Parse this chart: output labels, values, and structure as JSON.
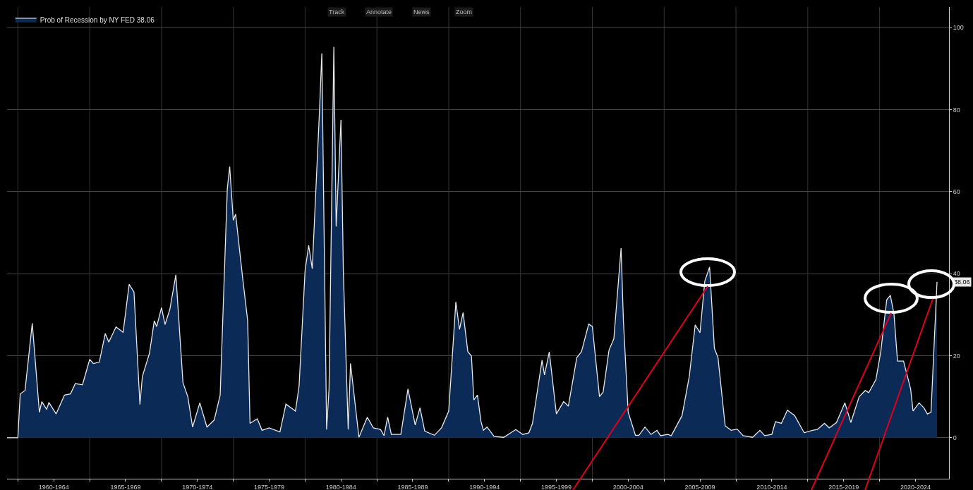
{
  "chart_data": {
    "type": "area",
    "legend": "top left",
    "grid": true,
    "marker": "none",
    "line_style": "solid",
    "xlim": [
      "1959-04",
      "2024-11"
    ],
    "xticks": [
      {
        "value": "1960",
        "label": null
      },
      {
        "value": "1962-07",
        "label": "1960-1964"
      },
      {
        "value": "1965",
        "label": null
      },
      {
        "value": "1967-07",
        "label": "1965-1969"
      },
      {
        "value": "1970",
        "label": null
      },
      {
        "value": "1972-07",
        "label": "1970-1974"
      },
      {
        "value": "1975",
        "label": null
      },
      {
        "value": "1977-07",
        "label": "1975-1979"
      },
      {
        "value": "1980",
        "label": null
      },
      {
        "value": "1982-07",
        "label": "1980-1984"
      },
      {
        "value": "1985",
        "label": null
      },
      {
        "value": "1987-07",
        "label": "1985-1989"
      },
      {
        "value": "1990",
        "label": null
      },
      {
        "value": "1992-07",
        "label": "1990-1994"
      },
      {
        "value": "1995",
        "label": null
      },
      {
        "value": "1997-07",
        "label": "1995-1999"
      },
      {
        "value": "2000",
        "label": null
      },
      {
        "value": "2002-07",
        "label": "2000-2004"
      },
      {
        "value": "2005",
        "label": null
      },
      {
        "value": "2007-07",
        "label": "2005-2009"
      },
      {
        "value": "2010",
        "label": null
      },
      {
        "value": "2012-07",
        "label": "2010-2014"
      },
      {
        "value": "2015",
        "label": null
      },
      {
        "value": "2017-07",
        "label": "2015-2019"
      },
      {
        "value": "2020",
        "label": null
      },
      {
        "value": "2022-07",
        "label": "2020-2024"
      }
    ],
    "ylim": [
      -10,
      105
    ],
    "yticks": [
      0,
      20,
      40,
      60,
      80,
      100
    ],
    "annotations": [
      "Track",
      "Annotate",
      "News",
      "Zoom",
      {
        "text": "38.06",
        "x": "2024-01",
        "y": 38
      }
    ],
    "x": [
      "1959-04",
      "1960-01",
      "1960-03",
      "1960-07",
      "1961-01",
      "1961-07",
      "1961-09",
      "1962-01",
      "1962-03",
      "1962-09",
      "1963-04",
      "1963-09",
      "1964-01",
      "1964-07",
      "1965-01",
      "1965-04",
      "1965-09",
      "1966-02",
      "1966-05",
      "1966-11",
      "1967-05",
      "1967-10",
      "1968-02",
      "1968-07",
      "1968-09",
      "1969-03",
      "1969-07",
      "1969-09",
      "1970-01",
      "1970-04",
      "1970-08",
      "1971-01",
      "1971-07",
      "1971-11",
      "1972-03",
      "1972-09",
      "1973-03",
      "1973-09",
      "1974-02",
      "1974-08",
      "1974-10",
      "1975-01",
      "1975-03",
      "1975-09",
      "1976-01",
      "1976-03",
      "1976-09",
      "1977-01",
      "1977-07",
      "1978-04",
      "1978-09",
      "1979-05",
      "1979-08",
      "1980-01",
      "1980-04",
      "1980-07",
      "1981-01",
      "1981-03",
      "1981-07",
      "1981-09",
      "1982-01",
      "1982-03",
      "1982-07",
      "1982-09",
      "1983-01",
      "1983-03",
      "1983-10",
      "1984-05",
      "1984-10",
      "1985-04",
      "1985-07",
      "1985-10",
      "1986-01",
      "1986-09",
      "1987-03",
      "1987-09",
      "1988-01",
      "1988-05",
      "1989-01",
      "1989-07",
      "1990-01",
      "1990-07",
      "1990-10",
      "1991-01",
      "1991-05",
      "1991-08",
      "1991-10",
      "1992-01",
      "1992-04",
      "1992-06",
      "1992-09",
      "1993-03",
      "1993-11",
      "1994-09",
      "1995-03",
      "1995-08",
      "1995-11",
      "1996-07",
      "1996-09",
      "1997-01",
      "1997-07",
      "1998-01",
      "1998-05",
      "1998-12",
      "1999-04",
      "1999-10",
      "2000-01",
      "2000-07",
      "2000-10",
      "2001-03",
      "2001-07",
      "2002-01",
      "2002-03",
      "2002-07",
      "2003-01",
      "2003-04",
      "2003-09",
      "2004-02",
      "2004-07",
      "2004-10",
      "2005-04",
      "2005-07",
      "2006-04",
      "2006-10",
      "2007-03",
      "2007-07",
      "2007-11",
      "2008-03",
      "2008-07",
      "2008-10",
      "2009-04",
      "2009-09",
      "2010-02",
      "2010-07",
      "2011-03",
      "2011-09",
      "2012-01",
      "2012-07",
      "2012-10",
      "2013-03",
      "2013-08",
      "2014-02",
      "2014-10",
      "2015-05",
      "2015-09",
      "2016-03",
      "2016-07",
      "2017-01",
      "2017-08",
      "2018-01",
      "2018-08",
      "2019-01",
      "2019-04",
      "2019-10",
      "2020-02",
      "2020-07",
      "2020-10",
      "2021-01",
      "2021-04",
      "2021-09",
      "2022-03",
      "2022-05",
      "2022-10",
      "2023-02",
      "2023-05",
      "2023-08",
      "2024-01"
    ],
    "series": [
      {
        "name": "Prob of Recession by NY FED 38.06",
        "color": "#0b2a55",
        "values": [
          0,
          0,
          10.7,
          11.5,
          27.9,
          6.2,
          8.8,
          6.9,
          8.6,
          5.8,
          10.4,
          10.7,
          13.2,
          12.9,
          19.1,
          18.1,
          18.4,
          25.4,
          23.3,
          27.0,
          25.7,
          37.4,
          35.5,
          8.1,
          14.9,
          20.6,
          28.5,
          27.1,
          31.7,
          27.6,
          31.3,
          39.7,
          13.4,
          10.0,
          2.6,
          8.5,
          2.6,
          4.3,
          10.4,
          60.6,
          66.1,
          53.0,
          54.5,
          38.5,
          28.6,
          3.5,
          4.6,
          1.8,
          2.4,
          1.4,
          8.2,
          6.5,
          12.6,
          40.8,
          46.9,
          41.2,
          79.7,
          93.7,
          2.0,
          11.9,
          95.3,
          51.5,
          77.5,
          40,
          2.0,
          18.1,
          0.1,
          5.0,
          2.4,
          2.0,
          0.5,
          5.0,
          0.8,
          0.8,
          11.9,
          3.1,
          7.3,
          1.6,
          0.6,
          2.4,
          6.5,
          33.1,
          26.4,
          30.5,
          21.0,
          19.9,
          9.2,
          10.4,
          3.9,
          1.8,
          2.6,
          0.3,
          0.1,
          2.0,
          0.8,
          1.2,
          3.5,
          18.9,
          15.3,
          20.9,
          5.8,
          8.8,
          7.7,
          19.5,
          21.0,
          27.7,
          27.1,
          10.0,
          11.1,
          21.4,
          24.1,
          46.2,
          28.6,
          6.2,
          0.6,
          0.6,
          2.6,
          0.8,
          1.8,
          0.5,
          0.8,
          0.5,
          5.4,
          14.9,
          27.5,
          25.6,
          38.2,
          41.6,
          21.8,
          19.5,
          2.9,
          1.8,
          2.1,
          0.5,
          0.1,
          1.8,
          0.5,
          0.8,
          3.9,
          3.5,
          6.7,
          5.4,
          1.2,
          1.8,
          2.0,
          3.5,
          2.4,
          3.7,
          8.5,
          3.7,
          10.0,
          11.5,
          11.0,
          14.2,
          21.0,
          33.6,
          34.7,
          30.2,
          18.7,
          18.7,
          11.9,
          6.5,
          8.5,
          7.3,
          5.8,
          6.2,
          38
        ]
      }
    ]
  }
}
